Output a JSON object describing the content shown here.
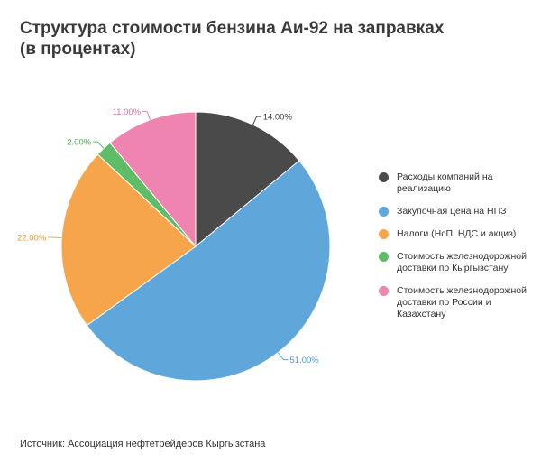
{
  "title": "Структура стоимости бензина Аи-92 на заправках\n(в процентах)",
  "source": "Источник: Ассоциация нефтетрейдеров Кыргызстана",
  "chart_data": {
    "type": "pie",
    "title": "Структура стоимости бензина Аи-92 на заправках (в процентах)",
    "start_angle_deg": 0,
    "direction": "clockwise",
    "legend_position": "right",
    "slices": [
      {
        "label": "Расходы компаний на реализацию",
        "value": 14,
        "display": "14.00%",
        "color": "#4a4a4a",
        "label_color": "#3a3a3a"
      },
      {
        "label": "Закупочная цена на НПЗ",
        "value": 51,
        "display": "51.00%",
        "color": "#5fa7da",
        "label_color": "#4a97cf"
      },
      {
        "label": "Налоги (НсП, НДС и акциз)",
        "value": 22,
        "display": "22.00%",
        "color": "#f7a54a",
        "label_color": "#f0972f"
      },
      {
        "label": "Стоимость железнодорожной доставки по Кыргызстану",
        "value": 2,
        "display": "2.00%",
        "color": "#5fbd68",
        "label_color": "#4cae55"
      },
      {
        "label": "Стоимость железнодорожной доставки по России и Казахстану",
        "value": 11,
        "display": "11.00%",
        "color": "#ef84b1",
        "label_color": "#e66ea1"
      }
    ]
  }
}
